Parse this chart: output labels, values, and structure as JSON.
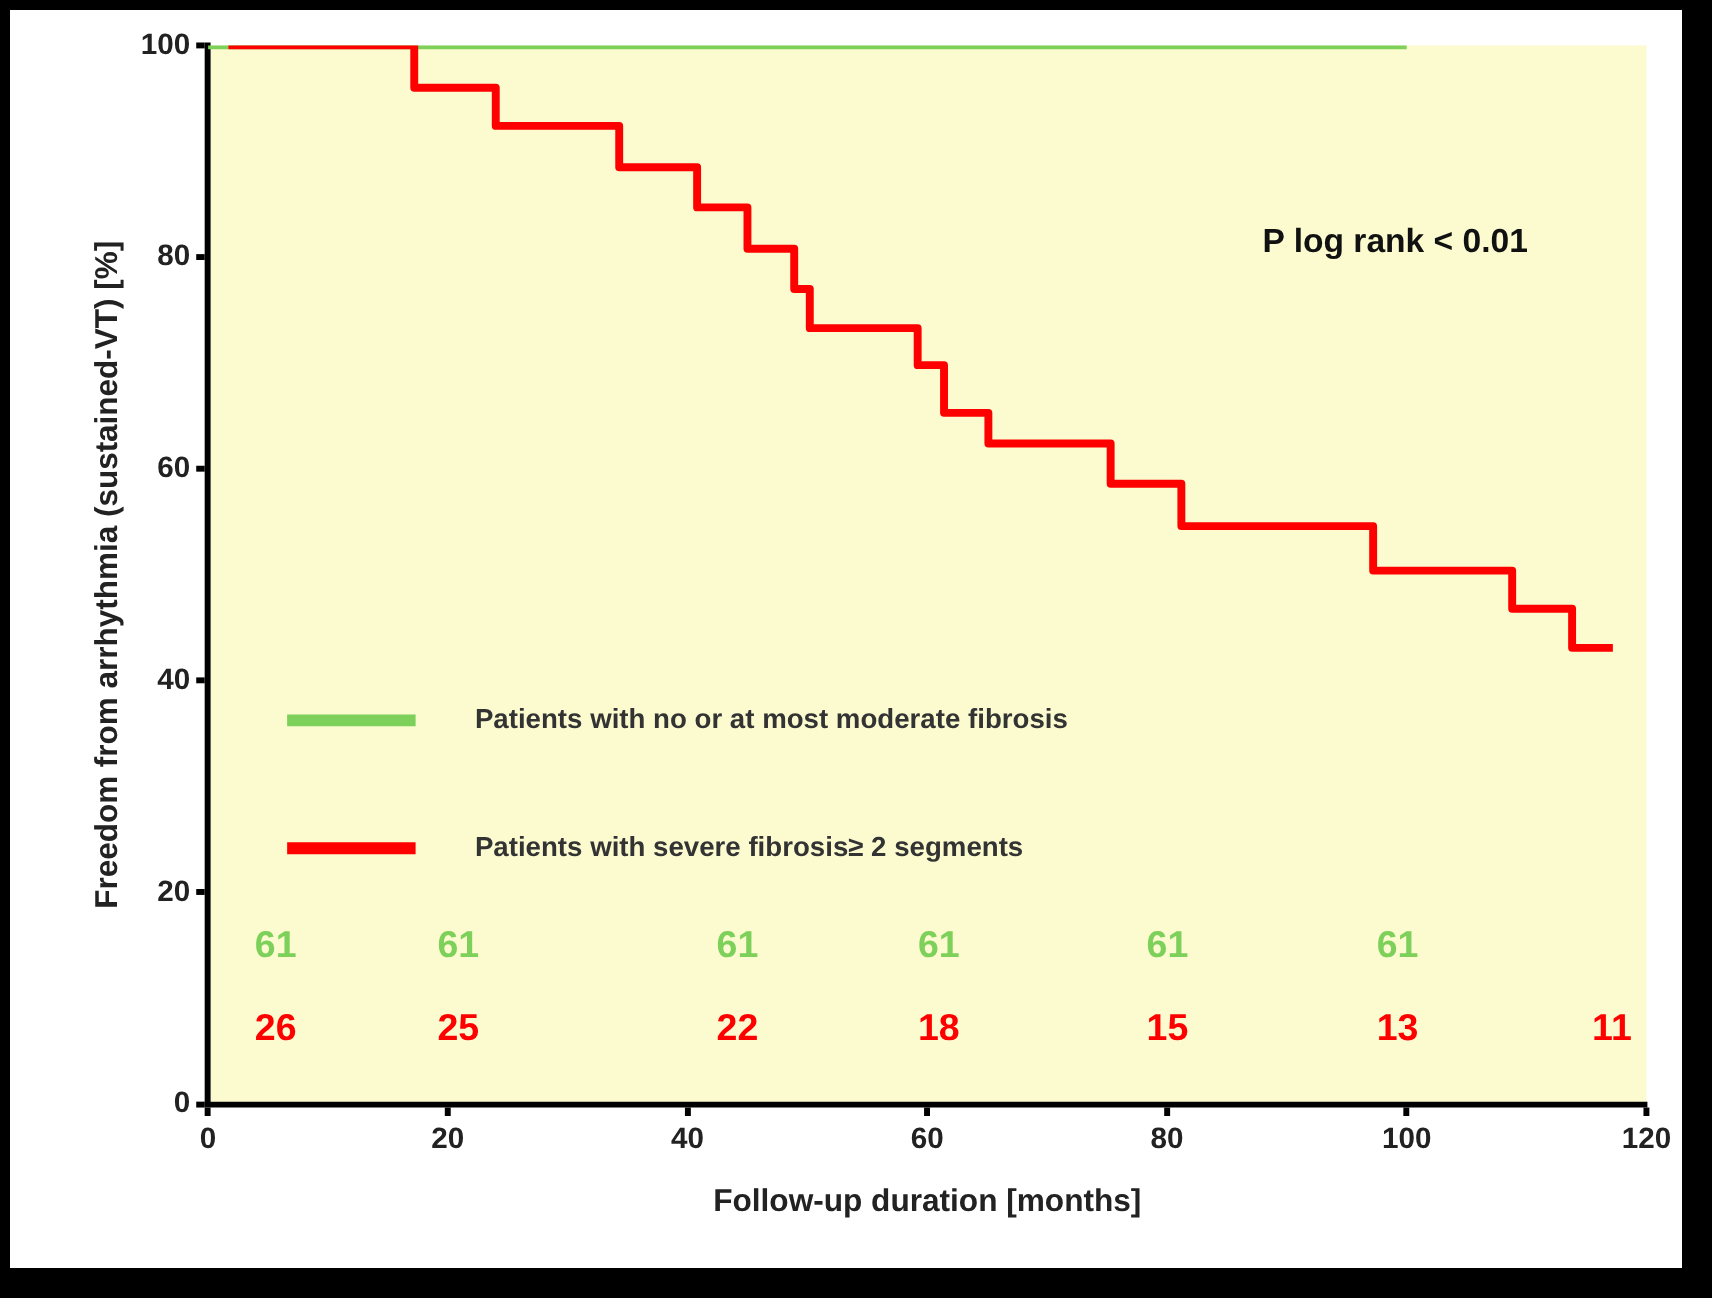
{
  "chart_data": {
    "type": "step",
    "xlabel": "Follow-up duration [months]",
    "ylabel": "Freedom from arrhythmia (sustained-VT) [%]",
    "xlim": [
      0,
      120
    ],
    "xticks": [
      0,
      20,
      40,
      60,
      80,
      100,
      120
    ],
    "ylim": [
      0,
      100
    ],
    "yticks": [
      0,
      20,
      40,
      60,
      80,
      100
    ],
    "grid": false,
    "legend": "bottom left",
    "series": [
      {
        "name": "Patients with no or at most moderate fibrosis",
        "color": "#7dd05a",
        "x": [
          0,
          100
        ],
        "values": [
          100,
          100
        ]
      },
      {
        "name": "Patients with severe fibrosis≥ 2 segments",
        "color": "#ff0000",
        "x": [
          1.7,
          17.2,
          24,
          34.3,
          40.8,
          45,
          48.9,
          50.2,
          59.2,
          61.4,
          65.1,
          75.3,
          81.2,
          97.2,
          108.8,
          113.8,
          117.2
        ],
        "values": [
          100,
          96,
          92.4,
          88.5,
          84.7,
          80.8,
          77,
          73.3,
          69.8,
          65.3,
          62.4,
          58.6,
          54.6,
          50.4,
          46.8,
          43.1,
          43.1
        ]
      }
    ],
    "annotations": [
      "P log rank < 0.01",
      "61 61 61 61 61 61",
      "26 25 22 18 15 13 11"
    ]
  }
}
